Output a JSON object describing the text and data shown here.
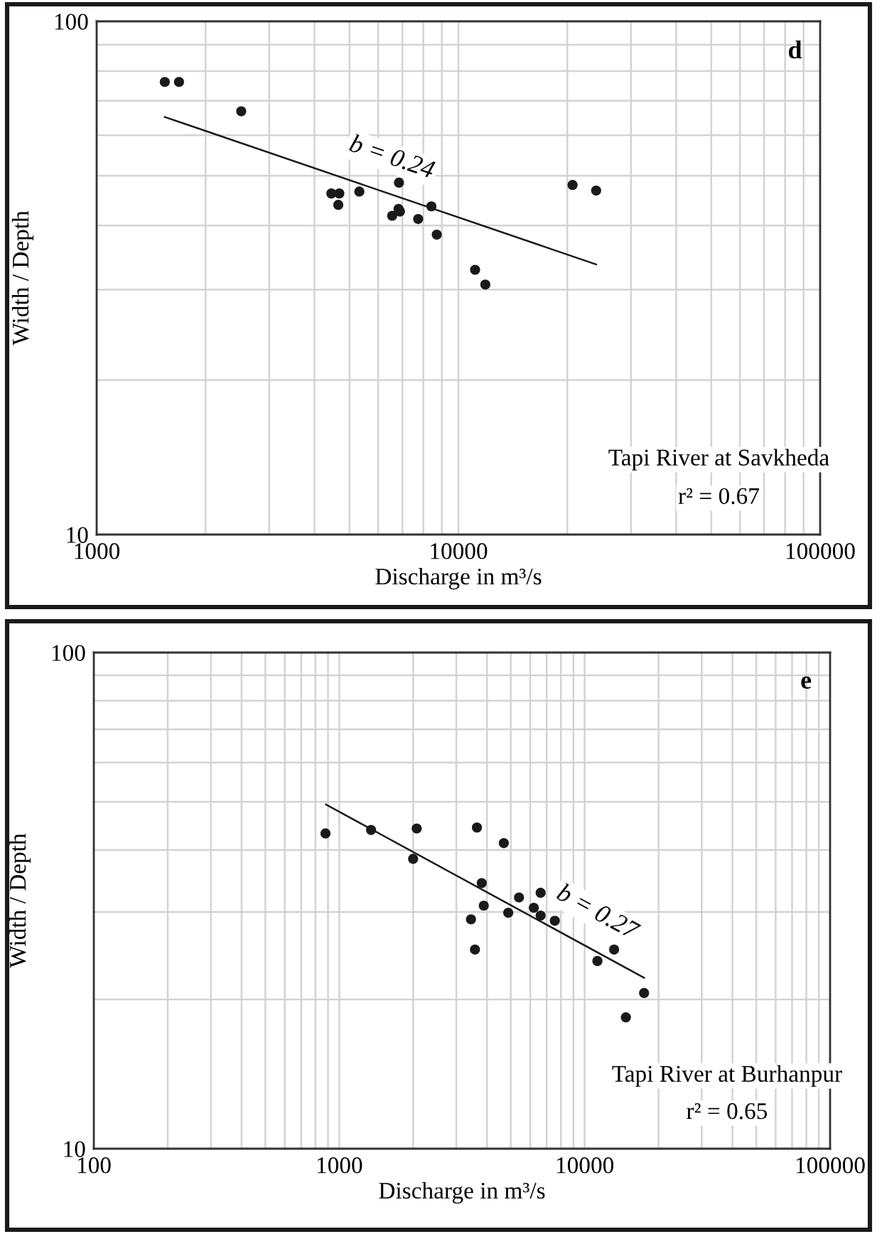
{
  "chart_data": [
    {
      "type": "scatter",
      "xlabel": "Discharge in m³/s",
      "ylabel": "Width / Depth",
      "log": "xy",
      "grid": true,
      "xlim": [
        1000,
        100000
      ],
      "ylim": [
        10,
        100
      ],
      "xticks": [
        1000,
        {
          "value": 2000,
          "label": null
        },
        {
          "value": 3000,
          "label": null
        },
        {
          "value": 4000,
          "label": null
        },
        {
          "value": 5000,
          "label": null
        },
        {
          "value": 6000,
          "label": null
        },
        {
          "value": 7000,
          "label": null
        },
        {
          "value": 8000,
          "label": null
        },
        {
          "value": 9000,
          "label": null
        },
        10000,
        {
          "value": 20000,
          "label": null
        },
        {
          "value": 30000,
          "label": null
        },
        {
          "value": 40000,
          "label": null
        },
        {
          "value": 50000,
          "label": null
        },
        {
          "value": 60000,
          "label": null
        },
        {
          "value": 70000,
          "label": null
        },
        {
          "value": 80000,
          "label": null
        },
        {
          "value": 90000,
          "label": null
        },
        100000
      ],
      "yticks": [
        10,
        {
          "value": 20,
          "label": null
        },
        {
          "value": 30,
          "label": null
        },
        {
          "value": 40,
          "label": null
        },
        {
          "value": 50,
          "label": null
        },
        {
          "value": 60,
          "label": null
        },
        {
          "value": 70,
          "label": null
        },
        {
          "value": 80,
          "label": null
        },
        {
          "value": 90,
          "label": null
        },
        100
      ],
      "series": [
        {
          "color": "#1a1a1a",
          "marker": "circle",
          "x": [
            1543,
            1689,
            2510,
            4455,
            4686,
            4656,
            5323,
            6850,
            6831,
            6893,
            6560,
            7741,
            8420,
            8714,
            11120,
            11870,
            20680,
            24030
          ],
          "values": [
            76.2,
            76.2,
            66.8,
            46.2,
            46.2,
            43.9,
            46.6,
            48.5,
            43.1,
            42.6,
            41.8,
            41.2,
            43.6,
            38.4,
            32.8,
            30.7,
            48.0,
            46.8
          ]
        },
        {
          "type": "line",
          "color": "#1a1a1a",
          "marker": "none",
          "x": [
            1543,
            24030
          ],
          "values": [
            65.1,
            33.6
          ]
        }
      ],
      "annotations": [
        "d",
        "Tapi River at Savkheda",
        "r² = 0.67",
        "b = 0.24"
      ]
    },
    {
      "type": "scatter",
      "xlabel": "Discharge in m³/s",
      "ylabel": "Width / Depth",
      "log": "xy",
      "grid": true,
      "xlim": [
        100,
        100000
      ],
      "ylim": [
        10,
        100
      ],
      "xticks": [
        100,
        {
          "value": 200,
          "label": null
        },
        {
          "value": 300,
          "label": null
        },
        {
          "value": 400,
          "label": null
        },
        {
          "value": 500,
          "label": null
        },
        {
          "value": 600,
          "label": null
        },
        {
          "value": 700,
          "label": null
        },
        {
          "value": 800,
          "label": null
        },
        {
          "value": 900,
          "label": null
        },
        1000,
        {
          "value": 2000,
          "label": null
        },
        {
          "value": 3000,
          "label": null
        },
        {
          "value": 4000,
          "label": null
        },
        {
          "value": 5000,
          "label": null
        },
        {
          "value": 6000,
          "label": null
        },
        {
          "value": 7000,
          "label": null
        },
        {
          "value": 8000,
          "label": null
        },
        {
          "value": 9000,
          "label": null
        },
        10000,
        {
          "value": 20000,
          "label": null
        },
        {
          "value": 30000,
          "label": null
        },
        {
          "value": 40000,
          "label": null
        },
        {
          "value": 50000,
          "label": null
        },
        {
          "value": 60000,
          "label": null
        },
        {
          "value": 70000,
          "label": null
        },
        {
          "value": 80000,
          "label": null
        },
        {
          "value": 90000,
          "label": null
        },
        100000
      ],
      "yticks": [
        10,
        {
          "value": 20,
          "label": null
        },
        {
          "value": 30,
          "label": null
        },
        {
          "value": 40,
          "label": null
        },
        {
          "value": 50,
          "label": null
        },
        {
          "value": 60,
          "label": null
        },
        {
          "value": 70,
          "label": null
        },
        {
          "value": 80,
          "label": null
        },
        {
          "value": 90,
          "label": null
        },
        100
      ],
      "series": [
        {
          "color": "#1a1a1a",
          "marker": "circle",
          "x": [
            879,
            1348,
            2069,
            2000,
            3640,
            4683,
            3808,
            3881,
            3442,
            3573,
            4881,
            5401,
            6616,
            6204,
            6616,
            7557,
            11270,
            13180,
            17460,
            14720
          ],
          "values": [
            43.2,
            43.9,
            44.2,
            38.4,
            44.4,
            41.3,
            34.3,
            30.9,
            29.0,
            25.2,
            29.9,
            32.1,
            32.8,
            30.6,
            29.5,
            28.8,
            23.9,
            25.2,
            20.6,
            18.4
          ]
        },
        {
          "type": "line",
          "color": "#1a1a1a",
          "marker": "none",
          "x": [
            883,
            17460
          ],
          "values": [
            49.4,
            22.1
          ]
        }
      ],
      "annotations": [
        "e",
        "Tapi River at Burhanpur",
        "r² = 0.65",
        "b = 0.27"
      ]
    }
  ]
}
